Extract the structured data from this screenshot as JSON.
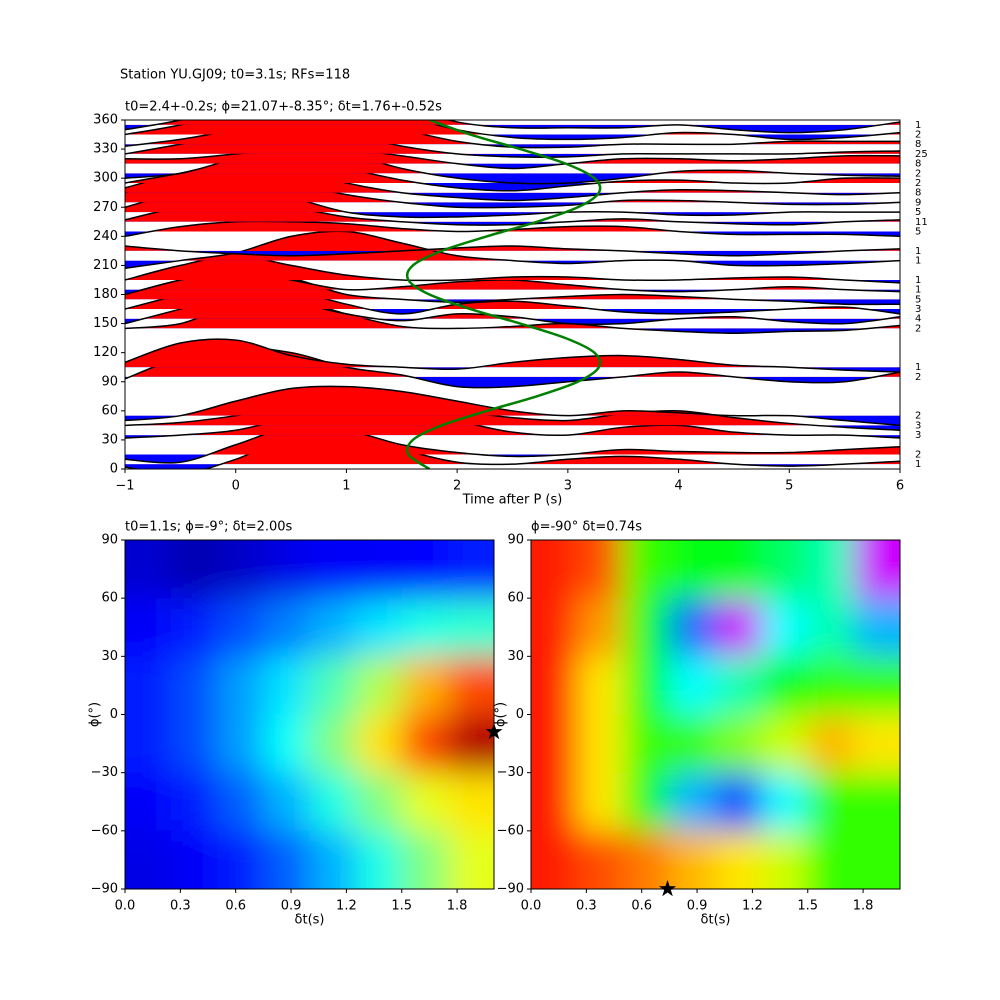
{
  "chart_data": [
    {
      "type": "wiggle",
      "suptitle": "Station YU.GJ09; t0=3.1s; RFs=118",
      "title": "t0=2.4+-0.2s; ϕ=21.07+-8.35°; δt=1.76+-0.52s",
      "xlabel": "Time after P (s)",
      "xlim": [
        -1,
        6
      ],
      "xticks": [
        {
          "value": -1,
          "label": "−1"
        },
        0,
        1,
        2,
        3,
        4,
        5,
        6
      ],
      "ylim": [
        0,
        360
      ],
      "yticks": [
        0,
        30,
        60,
        90,
        120,
        150,
        180,
        210,
        240,
        270,
        300,
        330,
        360
      ],
      "fill_positive": "#ff0000",
      "fill_negative": "#0000ff",
      "line_color": "#000000",
      "x": [
        -1,
        -0.5,
        0,
        0.5,
        1,
        1.5,
        2,
        2.5,
        3,
        3.5,
        4,
        4.5,
        5,
        5.5,
        6
      ],
      "traces": [
        {
          "baz": 5,
          "count": 1,
          "values": [
            -3,
            -10,
            5,
            28,
            30,
            15,
            2,
            0,
            5,
            8,
            5,
            0,
            -2,
            0,
            3
          ]
        },
        {
          "baz": 15,
          "count": 2,
          "values": [
            -5,
            -8,
            10,
            28,
            25,
            10,
            2,
            -2,
            0,
            5,
            3,
            2,
            2,
            5,
            8
          ]
        },
        {
          "baz": 35,
          "count": 3,
          "values": [
            -3,
            0,
            5,
            18,
            28,
            30,
            15,
            3,
            0,
            8,
            10,
            3,
            0,
            0,
            -3
          ]
        },
        {
          "baz": 45,
          "count": 3,
          "values": [
            0,
            3,
            10,
            20,
            25,
            22,
            15,
            8,
            5,
            12,
            15,
            8,
            2,
            -2,
            -5
          ]
        },
        {
          "baz": 55,
          "count": 2,
          "values": [
            -5,
            0,
            15,
            28,
            30,
            25,
            15,
            5,
            0,
            5,
            3,
            0,
            0,
            -5,
            -10
          ]
        },
        {
          "baz": 95,
          "count": 2,
          "values": [
            -2,
            20,
            30,
            25,
            10,
            2,
            -10,
            -10,
            -5,
            0,
            5,
            0,
            -5,
            -5,
            5
          ]
        },
        {
          "baz": 105,
          "count": 1,
          "values": [
            5,
            25,
            28,
            12,
            3,
            0,
            -2,
            5,
            10,
            12,
            8,
            2,
            0,
            -3,
            -5
          ]
        },
        {
          "baz": 145,
          "count": 2,
          "values": [
            0,
            5,
            25,
            30,
            15,
            2,
            0,
            2,
            5,
            0,
            -3,
            -5,
            -3,
            -2,
            3
          ]
        },
        {
          "baz": 155,
          "count": 4,
          "values": [
            -5,
            10,
            25,
            18,
            5,
            -2,
            5,
            2,
            -5,
            -5,
            0,
            2,
            -3,
            -5,
            2
          ]
        },
        {
          "baz": 165,
          "count": 3,
          "values": [
            0,
            15,
            30,
            20,
            5,
            -5,
            5,
            8,
            3,
            -3,
            -5,
            -3,
            0,
            2,
            -5
          ]
        },
        {
          "baz": 175,
          "count": 5,
          "values": [
            5,
            20,
            30,
            22,
            5,
            0,
            -3,
            0,
            3,
            5,
            3,
            0,
            -2,
            -5,
            -5
          ]
        },
        {
          "baz": 185,
          "count": 1,
          "values": [
            -5,
            10,
            20,
            10,
            0,
            3,
            8,
            10,
            5,
            0,
            -2,
            0,
            3,
            0,
            -2
          ]
        },
        {
          "baz": 195,
          "count": 1,
          "values": [
            0,
            15,
            25,
            15,
            5,
            0,
            0,
            3,
            3,
            0,
            0,
            2,
            3,
            0,
            -3
          ]
        },
        {
          "baz": 215,
          "count": 1,
          "values": [
            -8,
            0,
            8,
            25,
            30,
            18,
            5,
            0,
            -3,
            0,
            0,
            -5,
            -5,
            -3,
            0
          ]
        },
        {
          "baz": 225,
          "count": 1,
          "values": [
            5,
            0,
            -3,
            -5,
            -3,
            0,
            3,
            5,
            2,
            0,
            -3,
            -5,
            -3,
            0,
            2
          ]
        },
        {
          "baz": 245,
          "count": 5,
          "values": [
            -5,
            5,
            10,
            10,
            8,
            3,
            0,
            2,
            5,
            5,
            0,
            -3,
            -3,
            -3,
            -5
          ]
        },
        {
          "baz": 255,
          "count": 11,
          "values": [
            2,
            15,
            20,
            15,
            5,
            0,
            -3,
            -3,
            0,
            3,
            0,
            -2,
            -3,
            0,
            2
          ]
        },
        {
          "baz": 265,
          "count": 5,
          "values": [
            5,
            20,
            25,
            15,
            0,
            -5,
            -5,
            -3,
            0,
            0,
            -3,
            -3,
            0,
            0,
            0
          ]
        },
        {
          "baz": 275,
          "count": 9,
          "values": [
            10,
            25,
            30,
            20,
            8,
            0,
            -5,
            -5,
            -3,
            2,
            2,
            0,
            -2,
            -2,
            0
          ]
        },
        {
          "baz": 285,
          "count": 8,
          "values": [
            5,
            20,
            30,
            25,
            10,
            0,
            -5,
            -8,
            -5,
            0,
            3,
            2,
            0,
            -2,
            0
          ]
        },
        {
          "baz": 295,
          "count": 2,
          "values": [
            0,
            10,
            20,
            25,
            15,
            3,
            -5,
            -8,
            -3,
            2,
            3,
            0,
            0,
            5,
            5
          ]
        },
        {
          "baz": 305,
          "count": 2,
          "values": [
            -5,
            0,
            15,
            25,
            20,
            5,
            -5,
            -10,
            -10,
            -5,
            2,
            3,
            0,
            -2,
            -3
          ]
        },
        {
          "baz": 315,
          "count": 8,
          "values": [
            5,
            5,
            10,
            15,
            15,
            8,
            0,
            -5,
            0,
            5,
            5,
            3,
            5,
            8,
            8
          ]
        },
        {
          "baz": 325,
          "count": 25,
          "values": [
            0,
            10,
            20,
            25,
            20,
            8,
            0,
            -3,
            -3,
            0,
            0,
            0,
            0,
            2,
            3
          ]
        },
        {
          "baz": 335,
          "count": 8,
          "values": [
            -2,
            5,
            15,
            25,
            25,
            15,
            3,
            -3,
            -3,
            0,
            0,
            0,
            3,
            3,
            3
          ]
        },
        {
          "baz": 345,
          "count": 2,
          "values": [
            0,
            10,
            25,
            35,
            35,
            20,
            5,
            -3,
            -5,
            -3,
            2,
            0,
            -5,
            -3,
            2
          ]
        },
        {
          "baz": 355,
          "count": 1,
          "values": [
            -5,
            5,
            20,
            35,
            35,
            20,
            3,
            -3,
            -3,
            -3,
            0,
            -5,
            -8,
            -5,
            3
          ]
        }
      ],
      "fit": {
        "color": "#008000",
        "x": [
          1.75,
          1.56,
          1.6,
          1.86,
          2.27,
          2.72,
          3.09,
          3.28,
          3.24,
          2.98,
          2.57,
          2.12,
          1.75,
          1.56,
          1.6,
          1.86,
          2.27,
          2.72,
          3.09,
          3.28,
          3.24,
          2.98,
          2.57,
          2.12,
          1.75
        ],
        "y": [
          0,
          15,
          30,
          45,
          60,
          75,
          90,
          105,
          120,
          135,
          150,
          165,
          180,
          195,
          210,
          225,
          240,
          255,
          270,
          285,
          300,
          315,
          330,
          345,
          360
        ]
      }
    },
    {
      "type": "heatmap",
      "title": "t0=1.1s; ϕ=-9°; δt=2.00s",
      "xlabel": "δt(s)",
      "ylabel": "ϕ(°)",
      "xlim": [
        0,
        2
      ],
      "xticks": [
        {
          "value": 0,
          "label": "0.0"
        },
        0.3,
        0.6,
        0.9,
        1.2,
        1.5,
        1.8
      ],
      "ylim": [
        -90,
        90
      ],
      "yticks": [
        {
          "value": -90,
          "label": "−90"
        },
        {
          "value": -60,
          "label": "−60"
        },
        {
          "value": -30,
          "label": "−30"
        },
        0,
        30,
        60,
        90
      ],
      "colormap": "jet",
      "z": [
        [
          0.08,
          0.05,
          0.07,
          0.1,
          0.12,
          0.12,
          0.13,
          0.15
        ],
        [
          0.12,
          0.15,
          0.2,
          0.25,
          0.3,
          0.35,
          0.4,
          0.42
        ],
        [
          0.15,
          0.2,
          0.28,
          0.35,
          0.45,
          0.55,
          0.7,
          0.8
        ],
        [
          0.15,
          0.2,
          0.28,
          0.38,
          0.5,
          0.65,
          0.8,
          0.95
        ],
        [
          0.12,
          0.15,
          0.22,
          0.3,
          0.4,
          0.5,
          0.6,
          0.65
        ],
        [
          0.1,
          0.12,
          0.15,
          0.22,
          0.3,
          0.4,
          0.5,
          0.6
        ]
      ],
      "marker": {
        "x": 2.0,
        "y": -9
      }
    },
    {
      "type": "heatmap",
      "title": "ϕ=-90° δt=0.74s",
      "xlabel": "δt(s)",
      "ylabel": "ϕ(°)",
      "xlim": [
        0,
        2
      ],
      "xticks": [
        {
          "value": 0,
          "label": "0.0"
        },
        0.3,
        0.6,
        0.9,
        1.2,
        1.5,
        1.8
      ],
      "ylim": [
        -90,
        90
      ],
      "yticks": [
        {
          "value": -90,
          "label": "−90"
        },
        {
          "value": -60,
          "label": "−60"
        },
        {
          "value": -30,
          "label": "−30"
        },
        0,
        30,
        60,
        90
      ],
      "colormap": "hsv",
      "z": [
        [
          0.02,
          0.05,
          0.3,
          0.35,
          0.35,
          0.4,
          0.45,
          0.8
        ],
        [
          0.02,
          0.1,
          0.35,
          0.6,
          0.8,
          0.5,
          0.45,
          0.55
        ],
        [
          0.02,
          0.15,
          0.35,
          0.5,
          0.45,
          0.35,
          0.3,
          0.3
        ],
        [
          0.02,
          0.15,
          0.3,
          0.3,
          0.25,
          0.2,
          0.12,
          0.15
        ],
        [
          0.02,
          0.15,
          0.35,
          0.55,
          0.62,
          0.5,
          0.3,
          0.3
        ],
        [
          0.02,
          0.05,
          0.08,
          0.12,
          0.15,
          0.2,
          0.3,
          0.3
        ]
      ],
      "marker": {
        "x": 0.74,
        "y": -90
      }
    }
  ]
}
